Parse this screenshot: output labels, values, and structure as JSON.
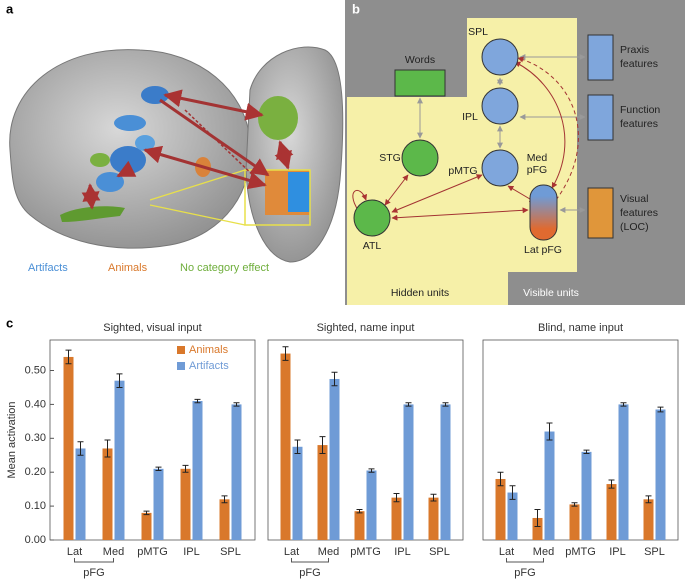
{
  "panel_a": {
    "label": "a",
    "legend": [
      "Artifacts",
      "Animals",
      "No category effect"
    ]
  },
  "panel_b": {
    "label": "b",
    "nodes": [
      "SPL",
      "IPL",
      "pMTG",
      "STG",
      "ATL",
      "Lat pFG"
    ],
    "med_label": [
      "Med",
      "pFG"
    ],
    "words": "Words",
    "features": [
      [
        "Praxis",
        "features"
      ],
      [
        "Function",
        "features"
      ],
      [
        "Visual",
        "features",
        "(LOC)"
      ]
    ],
    "regions": [
      "Hidden units",
      "Visible units"
    ]
  },
  "panel_c": {
    "label": "c"
  },
  "chart_data": [
    {
      "type": "bar",
      "title": "Sighted, visual input",
      "ylabel": "Mean activation",
      "categories": [
        "Lat",
        "Med",
        "pMTG",
        "IPL",
        "SPL"
      ],
      "category_group": "pFG",
      "series": [
        {
          "name": "Animals",
          "color": "#d9782b",
          "values": [
            0.54,
            0.27,
            0.08,
            0.21,
            0.12
          ],
          "errors": [
            0.02,
            0.025,
            0.005,
            0.01,
            0.01
          ]
        },
        {
          "name": "Artifacts",
          "color": "#6f9bd6",
          "values": [
            0.27,
            0.47,
            0.21,
            0.41,
            0.4
          ],
          "errors": [
            0.02,
            0.02,
            0.005,
            0.005,
            0.005
          ]
        }
      ],
      "ylim": [
        0,
        0.59
      ],
      "yticks": [
        {
          "value": 0,
          "label": "0.00"
        },
        {
          "value": 0.1,
          "label": "0.10"
        },
        {
          "value": 0.2,
          "label": "0.20"
        },
        {
          "value": 0.3,
          "label": "0.30"
        },
        {
          "value": 0.4,
          "label": "0.40"
        },
        {
          "value": 0.5,
          "label": "0.50"
        }
      ]
    },
    {
      "type": "bar",
      "title": "Sighted, name input",
      "categories": [
        "Lat",
        "Med",
        "pMTG",
        "IPL",
        "SPL"
      ],
      "category_group": "pFG",
      "series": [
        {
          "color": "#d9782b",
          "values": [
            0.55,
            0.28,
            0.085,
            0.125,
            0.125
          ],
          "errors": [
            0.02,
            0.025,
            0.005,
            0.012,
            0.01
          ]
        },
        {
          "color": "#6f9bd6",
          "values": [
            0.275,
            0.475,
            0.205,
            0.4,
            0.4
          ],
          "errors": [
            0.02,
            0.02,
            0.005,
            0.005,
            0.005
          ]
        }
      ],
      "ylim": [
        0,
        0.59
      ]
    },
    {
      "type": "bar",
      "title": "Blind, name input",
      "categories": [
        "Lat",
        "Med",
        "pMTG",
        "IPL",
        "SPL"
      ],
      "category_group": "pFG",
      "series": [
        {
          "color": "#d9782b",
          "values": [
            0.18,
            0.065,
            0.105,
            0.165,
            0.12
          ],
          "errors": [
            0.02,
            0.025,
            0.005,
            0.012,
            0.01
          ]
        },
        {
          "color": "#6f9bd6",
          "values": [
            0.14,
            0.32,
            0.26,
            0.4,
            0.385
          ],
          "errors": [
            0.02,
            0.025,
            0.005,
            0.005,
            0.007
          ]
        }
      ],
      "ylim": [
        0,
        0.59
      ]
    }
  ]
}
